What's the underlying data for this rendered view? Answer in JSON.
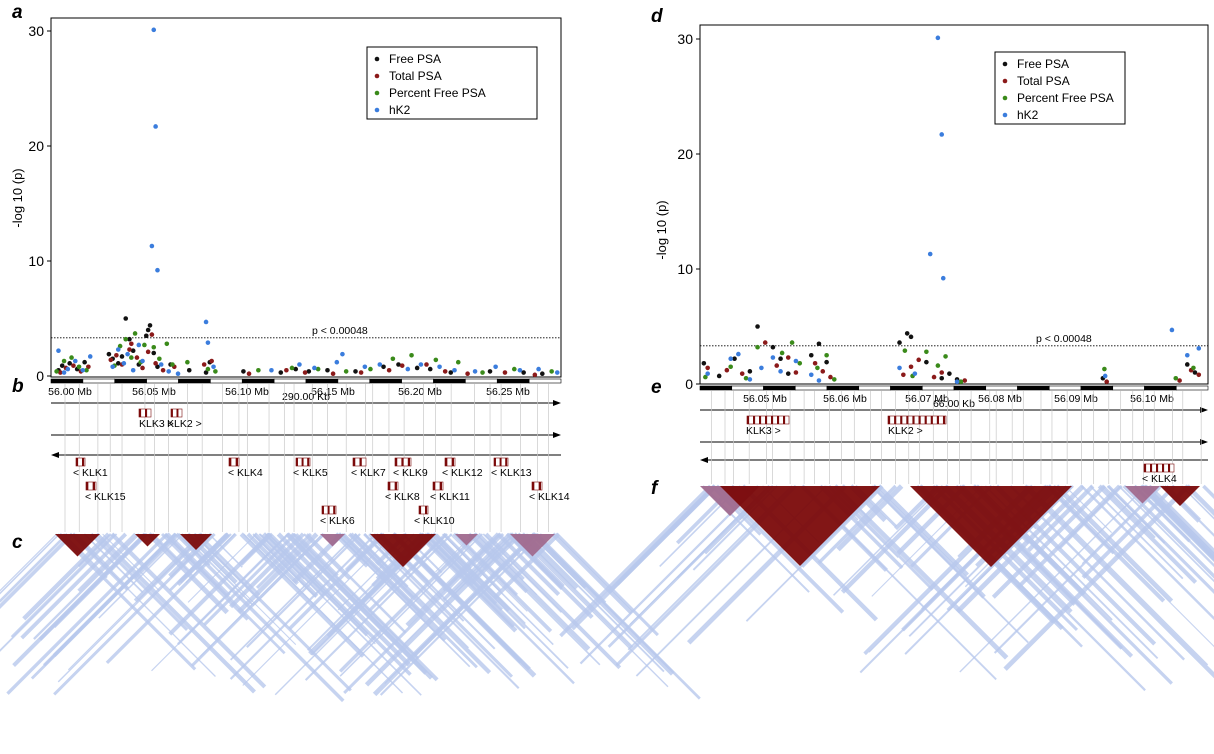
{
  "panel_labels": {
    "a": "a",
    "b": "b",
    "c": "c",
    "d": "d",
    "e": "e",
    "f": "f"
  },
  "colors": {
    "free_psa": "#111111",
    "total_psa": "#8b1a1a",
    "percent_free_psa": "#3a8a1a",
    "hk2": "#3b7ddd",
    "ld_strong": "#7b0a0a",
    "ld_mid": "#a06a8e",
    "ld_weak": "#b8c8ec",
    "exon": "#7b0a0a"
  },
  "chart_data": [
    {
      "id": "a",
      "type": "scatter",
      "ylabel": "-log 10 (p)",
      "xlabel": "",
      "ylim": [
        0,
        31
      ],
      "y_ticks": [
        0,
        10,
        20,
        30
      ],
      "threshold": {
        "value": 3.32,
        "label": "p < 0.00048"
      },
      "legend": {
        "placement": "top-right",
        "entries": [
          "Free PSA",
          "Total PSA",
          "Percent Free PSA",
          "hK2"
        ]
      },
      "x_ticks": [
        "56.00 Mb",
        "56.05 Mb",
        "56.10 Mb",
        "56.15 Mb",
        "56.20 Mb",
        "56.25 Mb"
      ],
      "span_label": "290.00 Kb",
      "series": [
        {
          "name": "Free PSA",
          "points": [
            [
              56.002,
              0.5
            ],
            [
              56.004,
              0.9
            ],
            [
              56.008,
              1.1
            ],
            [
              56.012,
              0.6
            ],
            [
              56.016,
              1.2
            ],
            [
              56.029,
              1.9
            ],
            [
              56.031,
              1.5
            ],
            [
              56.034,
              1.1
            ],
            [
              56.036,
              1.7
            ],
            [
              56.038,
              5.0
            ],
            [
              56.04,
              3.2
            ],
            [
              56.042,
              2.2
            ],
            [
              56.045,
              1.0
            ],
            [
              56.049,
              3.5
            ],
            [
              56.05,
              4.0
            ],
            [
              56.051,
              4.4
            ],
            [
              56.053,
              2.0
            ],
            [
              56.055,
              0.8
            ],
            [
              56.062,
              1.0
            ],
            [
              56.072,
              0.5
            ],
            [
              56.081,
              0.3
            ],
            [
              56.083,
              1.2
            ],
            [
              56.101,
              0.4
            ],
            [
              56.121,
              0.3
            ],
            [
              56.129,
              0.6
            ],
            [
              56.136,
              0.4
            ],
            [
              56.146,
              0.5
            ],
            [
              56.161,
              0.4
            ],
            [
              56.176,
              0.8
            ],
            [
              56.184,
              1.0
            ],
            [
              56.194,
              0.7
            ],
            [
              56.201,
              0.6
            ],
            [
              56.212,
              0.3
            ],
            [
              56.233,
              0.4
            ],
            [
              56.251,
              0.3
            ],
            [
              56.261,
              0.2
            ]
          ]
        },
        {
          "name": "Total PSA",
          "points": [
            [
              56.003,
              0.3
            ],
            [
              56.006,
              0.7
            ],
            [
              56.01,
              0.9
            ],
            [
              56.014,
              0.4
            ],
            [
              56.018,
              0.8
            ],
            [
              56.03,
              1.4
            ],
            [
              56.033,
              1.8
            ],
            [
              56.036,
              1.0
            ],
            [
              56.04,
              2.3
            ],
            [
              56.041,
              2.8
            ],
            [
              56.044,
              1.6
            ],
            [
              56.047,
              0.7
            ],
            [
              56.05,
              2.1
            ],
            [
              56.052,
              3.6
            ],
            [
              56.054,
              1.1
            ],
            [
              56.058,
              0.5
            ],
            [
              56.064,
              0.8
            ],
            [
              56.08,
              1.0
            ],
            [
              56.084,
              1.3
            ],
            [
              56.104,
              0.2
            ],
            [
              56.124,
              0.5
            ],
            [
              56.134,
              0.3
            ],
            [
              56.149,
              0.2
            ],
            [
              56.164,
              0.3
            ],
            [
              56.179,
              0.5
            ],
            [
              56.186,
              0.9
            ],
            [
              56.199,
              1.0
            ],
            [
              56.209,
              0.4
            ],
            [
              56.221,
              0.2
            ],
            [
              56.241,
              0.3
            ],
            [
              56.257,
              0.1
            ]
          ]
        },
        {
          "name": "Percent Free PSA",
          "points": [
            [
              56.001,
              0.4
            ],
            [
              56.005,
              1.3
            ],
            [
              56.009,
              1.6
            ],
            [
              56.013,
              0.8
            ],
            [
              56.017,
              0.5
            ],
            [
              56.032,
              0.9
            ],
            [
              56.035,
              2.6
            ],
            [
              56.038,
              3.2
            ],
            [
              56.041,
              1.6
            ],
            [
              56.043,
              3.7
            ],
            [
              56.046,
              1.2
            ],
            [
              56.048,
              2.7
            ],
            [
              56.053,
              2.5
            ],
            [
              56.056,
              1.5
            ],
            [
              56.06,
              2.8
            ],
            [
              56.063,
              1.0
            ],
            [
              56.071,
              1.2
            ],
            [
              56.082,
              0.6
            ],
            [
              56.086,
              0.4
            ],
            [
              56.109,
              0.5
            ],
            [
              56.127,
              0.7
            ],
            [
              56.141,
              0.6
            ],
            [
              56.156,
              0.4
            ],
            [
              56.169,
              0.6
            ],
            [
              56.181,
              1.5
            ],
            [
              56.191,
              1.8
            ],
            [
              56.204,
              1.4
            ],
            [
              56.216,
              1.2
            ],
            [
              56.229,
              0.3
            ],
            [
              56.246,
              0.6
            ],
            [
              56.266,
              0.4
            ]
          ]
        },
        {
          "name": "hK2",
          "points": [
            [
              56.002,
              2.2
            ],
            [
              56.005,
              0.3
            ],
            [
              56.007,
              0.6
            ],
            [
              56.011,
              1.3
            ],
            [
              56.015,
              0.5
            ],
            [
              56.019,
              1.7
            ],
            [
              56.031,
              0.8
            ],
            [
              56.034,
              2.3
            ],
            [
              56.037,
              1.1
            ],
            [
              56.039,
              1.9
            ],
            [
              56.042,
              0.5
            ],
            [
              56.045,
              2.7
            ],
            [
              56.047,
              1.3
            ],
            [
              56.052,
              11.3
            ],
            [
              56.053,
              30.1
            ],
            [
              56.054,
              21.7
            ],
            [
              56.055,
              9.2
            ],
            [
              56.057,
              1.0
            ],
            [
              56.061,
              0.4
            ],
            [
              56.066,
              0.2
            ],
            [
              56.081,
              4.7
            ],
            [
              56.082,
              2.9
            ],
            [
              56.085,
              0.8
            ],
            [
              56.116,
              0.5
            ],
            [
              56.131,
              1.0
            ],
            [
              56.139,
              0.7
            ],
            [
              56.151,
              1.2
            ],
            [
              56.154,
              1.9
            ],
            [
              56.166,
              0.8
            ],
            [
              56.174,
              1.0
            ],
            [
              56.189,
              0.6
            ],
            [
              56.196,
              1.0
            ],
            [
              56.206,
              0.8
            ],
            [
              56.214,
              0.5
            ],
            [
              56.225,
              0.4
            ],
            [
              56.236,
              0.8
            ],
            [
              56.249,
              0.5
            ],
            [
              56.259,
              0.6
            ],
            [
              56.269,
              0.3
            ]
          ]
        }
      ]
    },
    {
      "id": "d",
      "type": "scatter",
      "ylabel": "-log 10 (p)",
      "xlabel": "",
      "ylim": [
        0,
        31
      ],
      "y_ticks": [
        0,
        10,
        20,
        30
      ],
      "threshold": {
        "value": 3.32,
        "label": "p < 0.00048"
      },
      "legend": {
        "placement": "top-right",
        "entries": [
          "Free PSA",
          "Total PSA",
          "Percent Free PSA",
          "hK2"
        ]
      },
      "x_ticks": [
        "56.05 Mb",
        "56.06 Mb",
        "56.07 Mb",
        "56.08 Mb",
        "56.09 Mb",
        "56.10 Mb"
      ],
      "span_label": "66.00 Kb",
      "series": [
        {
          "name": "Free PSA",
          "points": [
            [
              56.041,
              1.8
            ],
            [
              56.043,
              0.7
            ],
            [
              56.045,
              2.2
            ],
            [
              56.047,
              1.1
            ],
            [
              56.048,
              5.0
            ],
            [
              56.05,
              3.2
            ],
            [
              56.051,
              2.2
            ],
            [
              56.052,
              0.9
            ],
            [
              56.055,
              2.5
            ],
            [
              56.056,
              3.5
            ],
            [
              56.057,
              1.9
            ],
            [
              56.0665,
              3.6
            ],
            [
              56.0675,
              4.4
            ],
            [
              56.068,
              4.1
            ],
            [
              56.07,
              1.9
            ],
            [
              56.072,
              0.5
            ],
            [
              56.073,
              0.9
            ],
            [
              56.074,
              0.4
            ],
            [
              56.093,
              0.5
            ],
            [
              56.104,
              1.7
            ],
            [
              56.105,
              1.0
            ]
          ]
        },
        {
          "name": "Total PSA",
          "points": [
            [
              56.0415,
              1.4
            ],
            [
              56.044,
              1.2
            ],
            [
              56.046,
              0.9
            ],
            [
              56.049,
              3.6
            ],
            [
              56.0505,
              1.6
            ],
            [
              56.052,
              2.3
            ],
            [
              56.053,
              1.0
            ],
            [
              56.0555,
              1.8
            ],
            [
              56.0565,
              1.1
            ],
            [
              56.0575,
              0.6
            ],
            [
              56.067,
              0.8
            ],
            [
              56.068,
              1.5
            ],
            [
              56.069,
              2.1
            ],
            [
              56.071,
              0.6
            ],
            [
              56.072,
              1.0
            ],
            [
              56.075,
              0.3
            ],
            [
              56.0935,
              0.2
            ],
            [
              56.103,
              0.3
            ],
            [
              56.1045,
              1.2
            ],
            [
              56.1055,
              0.8
            ]
          ]
        },
        {
          "name": "Percent Free PSA",
          "points": [
            [
              56.0412,
              0.6
            ],
            [
              56.0445,
              1.5
            ],
            [
              56.0465,
              0.5
            ],
            [
              56.048,
              3.2
            ],
            [
              56.0512,
              2.7
            ],
            [
              56.0525,
              3.6
            ],
            [
              56.0535,
              1.8
            ],
            [
              56.0558,
              1.4
            ],
            [
              56.057,
              2.5
            ],
            [
              56.058,
              0.4
            ],
            [
              56.0672,
              2.9
            ],
            [
              56.0682,
              0.7
            ],
            [
              56.07,
              2.8
            ],
            [
              56.0715,
              1.6
            ],
            [
              56.0725,
              2.4
            ],
            [
              56.0745,
              0.2
            ],
            [
              56.0932,
              1.3
            ],
            [
              56.1025,
              0.5
            ],
            [
              56.1048,
              1.4
            ]
          ]
        },
        {
          "name": "hK2",
          "points": [
            [
              56.0415,
              0.9
            ],
            [
              56.0445,
              2.2
            ],
            [
              56.0455,
              2.6
            ],
            [
              56.047,
              0.4
            ],
            [
              56.0485,
              1.4
            ],
            [
              56.05,
              2.3
            ],
            [
              56.051,
              1.1
            ],
            [
              56.053,
              2.0
            ],
            [
              56.055,
              0.8
            ],
            [
              56.056,
              0.3
            ],
            [
              56.0665,
              1.4
            ],
            [
              56.0685,
              0.9
            ],
            [
              56.0705,
              11.3
            ],
            [
              56.0715,
              30.1
            ],
            [
              56.072,
              21.7
            ],
            [
              56.0722,
              9.2
            ],
            [
              56.074,
              0.2
            ],
            [
              56.0933,
              0.7
            ],
            [
              56.102,
              4.7
            ],
            [
              56.104,
              2.5
            ],
            [
              56.1055,
              3.1
            ]
          ]
        }
      ]
    }
  ],
  "genes_a": [
    {
      "name": "KLK3",
      "text": "KLK3 >"
    },
    {
      "name": "KLK2",
      "text": "KLK2 >"
    },
    {
      "name": "KLK1",
      "text": "< KLK1"
    },
    {
      "name": "KLK15",
      "text": "< KLK15"
    },
    {
      "name": "KLK4",
      "text": "< KLK4"
    },
    {
      "name": "KLK5",
      "text": "< KLK5"
    },
    {
      "name": "KLK6",
      "text": "< KLK6"
    },
    {
      "name": "KLK7",
      "text": "< KLK7"
    },
    {
      "name": "KLK8",
      "text": "< KLK8"
    },
    {
      "name": "KLK9",
      "text": "< KLK9"
    },
    {
      "name": "KLK10",
      "text": "< KLK10"
    },
    {
      "name": "KLK11",
      "text": "< KLK11"
    },
    {
      "name": "KLK12",
      "text": "< KLK12"
    },
    {
      "name": "KLK13",
      "text": "< KLK13"
    },
    {
      "name": "KLK14",
      "text": "< KLK14"
    }
  ],
  "genes_d": [
    {
      "name": "KLK3",
      "text": "KLK3 >"
    },
    {
      "name": "KLK2",
      "text": "KLK2 >"
    },
    {
      "name": "KLK4",
      "text": "< KLK4"
    }
  ]
}
